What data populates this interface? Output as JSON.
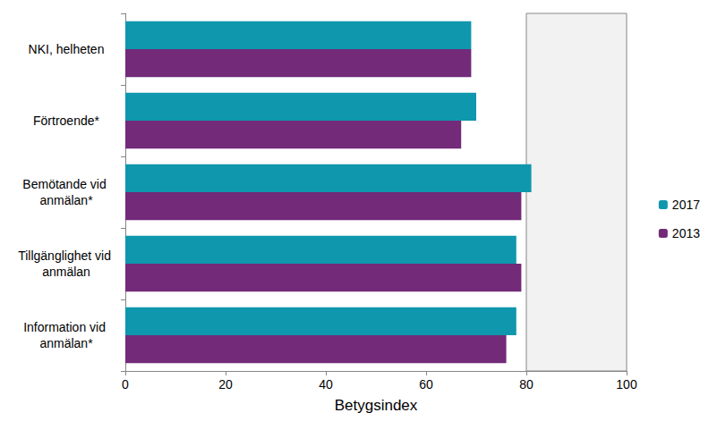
{
  "chart_data": {
    "type": "bar",
    "orientation": "horizontal",
    "categories": [
      "NKI, helheten",
      "Förtroende*",
      "Bemötande vid anmälan*",
      "Tillgänglighet vid anmälan",
      "Information vid anmälan*"
    ],
    "series": [
      {
        "name": "2017",
        "color": "#0f97ad",
        "values": [
          69,
          70,
          81,
          78,
          78
        ]
      },
      {
        "name": "2013",
        "color": "#722a79",
        "values": [
          69,
          67,
          79,
          79,
          76
        ]
      }
    ],
    "x_label": "Betygsindex",
    "xlim": [
      0,
      100
    ],
    "xticks": [
      0,
      20,
      40,
      60,
      80,
      100
    ],
    "shaded_range": [
      80,
      100
    ],
    "grid": false,
    "legend": "right"
  }
}
